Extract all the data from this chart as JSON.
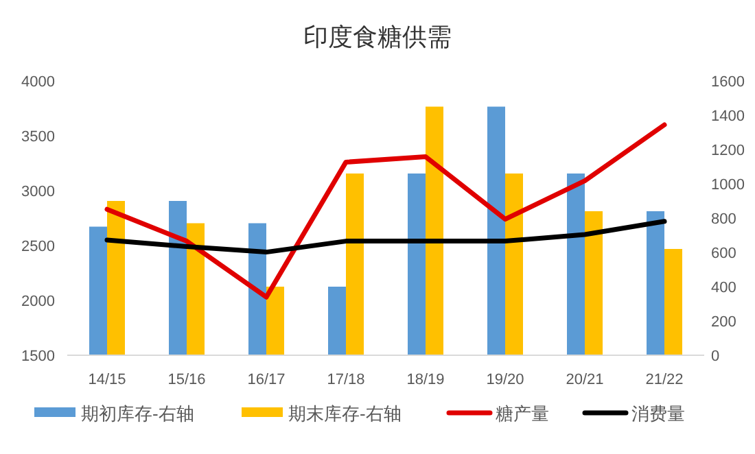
{
  "chart_data": {
    "type": "bar",
    "title": "印度食糖供需",
    "categories": [
      "14/15",
      "15/16",
      "16/17",
      "17/18",
      "18/19",
      "19/20",
      "20/21",
      "21/22"
    ],
    "series": [
      {
        "name": "期初库存-右轴",
        "axis": "y2",
        "color": "#5b9bd5",
        "values": [
          750,
          900,
          770,
          400,
          1060,
          1450,
          1060,
          840
        ]
      },
      {
        "name": "期末库存-右轴",
        "axis": "y2",
        "color": "#ffc000",
        "values": [
          900,
          770,
          400,
          1060,
          1450,
          1060,
          840,
          620
        ]
      },
      {
        "name": "糖产量",
        "type": "line",
        "axis": "y",
        "color": "#e00000",
        "values": [
          2830,
          2540,
          2030,
          3260,
          3310,
          2740,
          3090,
          3600
        ]
      },
      {
        "name": "消费量",
        "type": "line",
        "axis": "y",
        "color": "#000000",
        "values": [
          2550,
          2490,
          2440,
          2540,
          2540,
          2540,
          2600,
          2720
        ]
      }
    ],
    "ylim": [
      1500,
      4000
    ],
    "yticks": [
      1500,
      2000,
      2500,
      3000,
      3500,
      4000
    ],
    "y2lim": [
      0,
      1600
    ],
    "y2ticks": [
      0,
      200,
      400,
      600,
      800,
      1000,
      1200,
      1400,
      1600
    ],
    "grid": false,
    "legend": "bottom",
    "line_style": "solid",
    "marker": "none"
  }
}
